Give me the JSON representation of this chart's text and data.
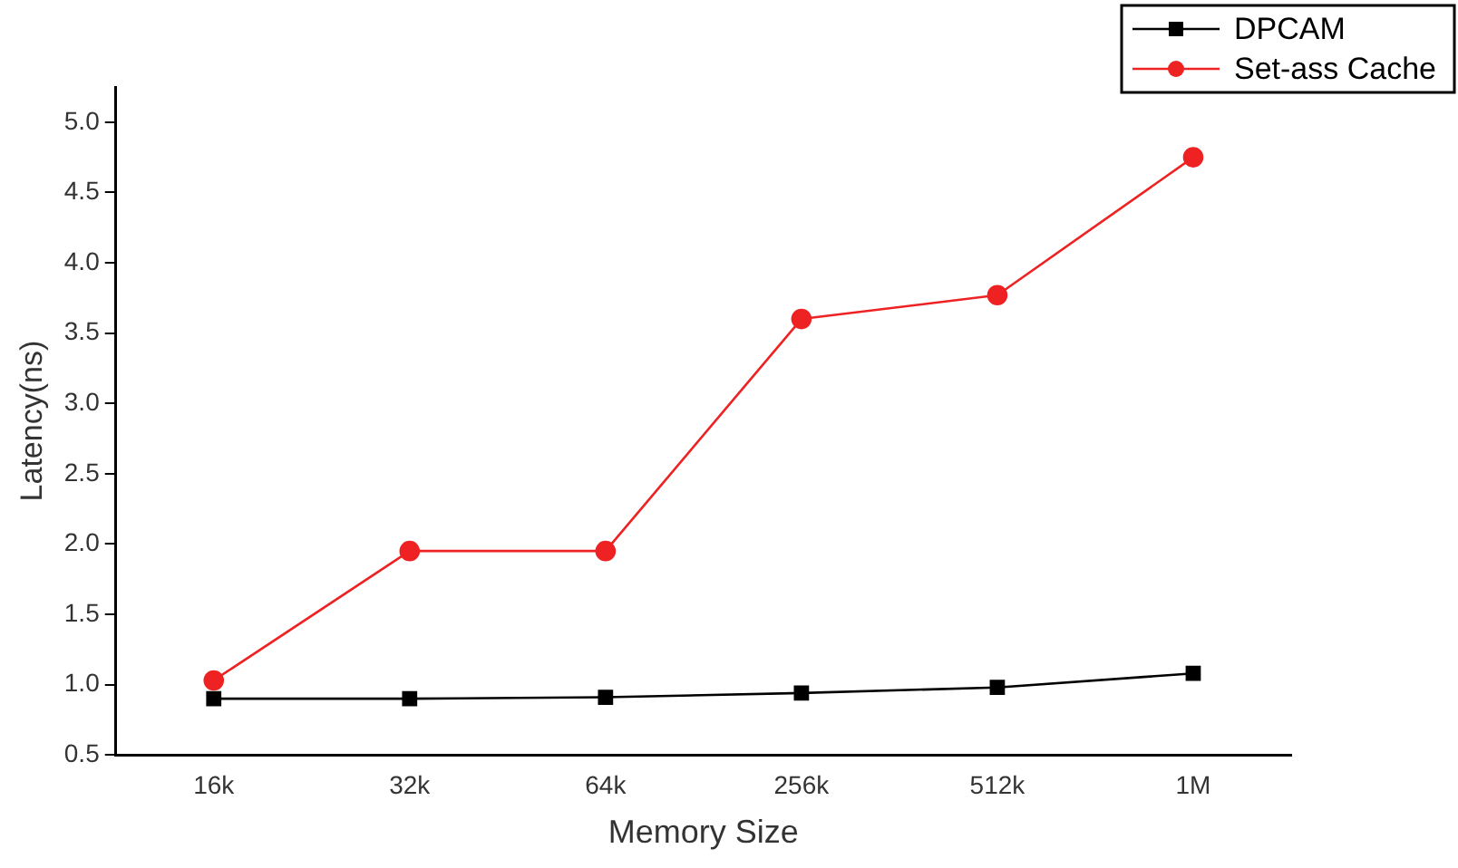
{
  "chart_data": {
    "type": "line",
    "xlabel": "Memory Size",
    "ylabel": "Latency(ns)",
    "categories": [
      "16k",
      "32k",
      "64k",
      "256k",
      "512k",
      "1M"
    ],
    "series": [
      {
        "name": "DPCAM",
        "color": "#000000",
        "marker": "square",
        "values": [
          0.9,
          0.9,
          0.91,
          0.94,
          0.98,
          1.08
        ]
      },
      {
        "name": "Set-ass Cache",
        "color": "#ee2222",
        "marker": "circle",
        "values": [
          1.03,
          1.95,
          1.95,
          3.6,
          3.77,
          4.75
        ]
      }
    ],
    "ylim": [
      0.5,
      5.25
    ],
    "yticks": [
      0.5,
      {
        "value": 1,
        "label": "1.0"
      },
      1.5,
      {
        "value": 2,
        "label": "2.0"
      },
      2.5,
      {
        "value": 3,
        "label": "3.0"
      },
      3.5,
      {
        "value": 4,
        "label": "4.0"
      },
      4.5,
      {
        "value": 5,
        "label": "5.0"
      }
    ],
    "grid": false,
    "legend": "top right"
  }
}
